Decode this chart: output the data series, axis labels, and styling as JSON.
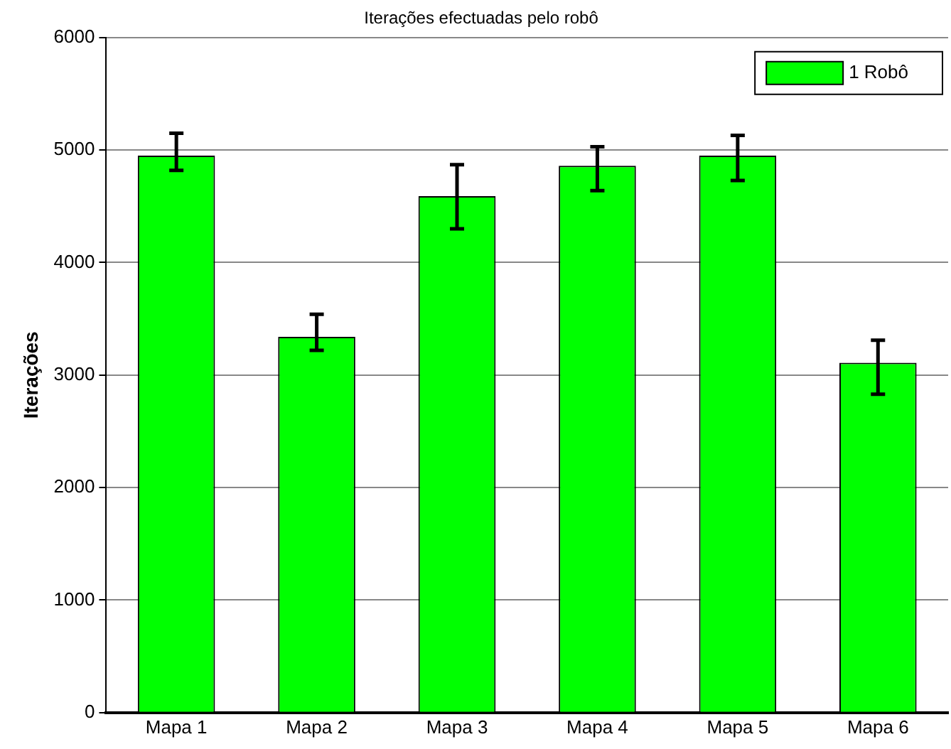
{
  "chart_data": {
    "type": "bar",
    "title": "Iterações efectuadas pelo robô",
    "ylabel": "Iterações",
    "categories": [
      "Mapa 1",
      "Mapa 2",
      "Mapa 3",
      "Mapa 4",
      "Mapa 5",
      "Mapa 6"
    ],
    "series": [
      {
        "name": "1 Robô",
        "color": "#00ff00",
        "values": [
          4950,
          3340,
          4590,
          4860,
          4950,
          3110
        ],
        "errors": [
          [
            4820,
            5150
          ],
          [
            3220,
            3540
          ],
          [
            4300,
            4870
          ],
          [
            4640,
            5030
          ],
          [
            4730,
            5130
          ],
          [
            2830,
            3310
          ]
        ]
      }
    ],
    "ylim": [
      0,
      6000
    ],
    "yticks": [
      0,
      1000,
      2000,
      3000,
      4000,
      5000,
      6000
    ],
    "grid": "y",
    "legend": "top right"
  }
}
